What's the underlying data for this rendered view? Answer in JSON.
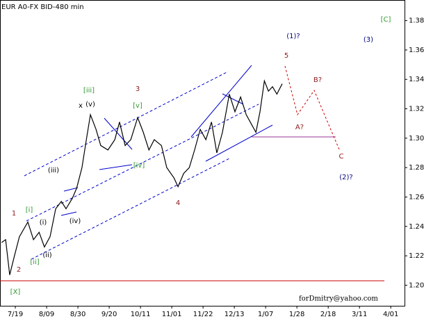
{
  "chart_data": {
    "type": "line",
    "title": "EUR A0-FX BID-480 min",
    "watermark": "forDmitry@yahoo.com",
    "series": [
      {
        "color": "#000000",
        "x": [
          -0.44,
          -0.31,
          -0.18,
          -0.04,
          0.13,
          0.4,
          0.58,
          0.76,
          0.93,
          1.11,
          1.29,
          1.47,
          1.62,
          1.82,
          1.96,
          2.13,
          2.27,
          2.4,
          2.58,
          2.73,
          2.96,
          3.18,
          3.33,
          3.51,
          3.69,
          3.91,
          4.09,
          4.27,
          4.44,
          4.67,
          4.84,
          5.07,
          5.2,
          5.38,
          5.56,
          5.73,
          5.91,
          6.09,
          6.27,
          6.44,
          6.62,
          6.84,
          7.02,
          7.2,
          7.38,
          7.56,
          7.69,
          7.82,
          7.96,
          8.09,
          8.22,
          8.36,
          8.53
        ],
        "values": [
          1.229,
          1.231,
          1.207,
          1.219,
          1.233,
          1.243,
          1.231,
          1.236,
          1.226,
          1.233,
          1.252,
          1.257,
          1.252,
          1.259,
          1.266,
          1.28,
          1.299,
          1.316,
          1.306,
          1.295,
          1.292,
          1.299,
          1.311,
          1.295,
          1.299,
          1.314,
          1.304,
          1.292,
          1.299,
          1.295,
          1.28,
          1.273,
          1.267,
          1.276,
          1.28,
          1.292,
          1.306,
          1.299,
          1.311,
          1.29,
          1.304,
          1.33,
          1.318,
          1.328,
          1.316,
          1.309,
          1.304,
          1.318,
          1.339,
          1.332,
          1.335,
          1.33,
          1.337
        ]
      }
    ],
    "xlim": [
      -0.49,
      12.44
    ],
    "xticks": [
      {
        "value": 0,
        "label": "7/19"
      },
      {
        "value": 1,
        "label": "8/09"
      },
      {
        "value": 2,
        "label": "8/30"
      },
      {
        "value": 3,
        "label": "9/20"
      },
      {
        "value": 4,
        "label": "10/11"
      },
      {
        "value": 5,
        "label": "11/01"
      },
      {
        "value": 6,
        "label": "11/22"
      },
      {
        "value": 7,
        "label": "12/13"
      },
      {
        "value": 8,
        "label": "1/07"
      },
      {
        "value": 9,
        "label": "1/28"
      },
      {
        "value": 10,
        "label": "2/18"
      },
      {
        "value": 11,
        "label": "3/11"
      },
      {
        "value": 12,
        "label": "4/01"
      }
    ],
    "ylim": [
      1.186,
      1.394
    ],
    "yticks": [
      {
        "value": 1.2,
        "label": "1.20"
      },
      1.22,
      1.24,
      1.26,
      1.28,
      {
        "value": 1.3,
        "label": "1.30"
      },
      1.32,
      1.34,
      1.36,
      1.38
    ],
    "annotations": [
      "[C]",
      "(3)",
      "(1)?",
      "5",
      "B?",
      "A?",
      "C",
      "(2)?",
      "3",
      "[iii]",
      "x",
      "(v)",
      "[v]",
      "[iv]",
      "4",
      "(iii)",
      "(iv)",
      "(i)",
      "(ii)",
      "[i]",
      "[ii]",
      "1",
      "2",
      "[X]"
    ]
  }
}
